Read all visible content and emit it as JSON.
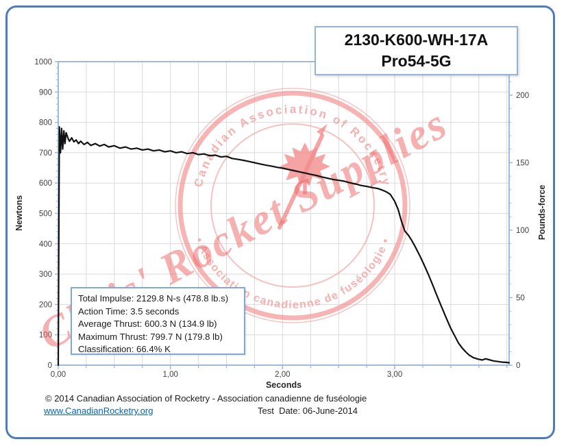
{
  "title_box": {
    "line1": "2130-K600-WH-17A",
    "line2": "Pro54-5G"
  },
  "stats_box": {
    "lines": [
      "Total Impulse: 2129.8 N-s (478.8 lb.s)",
      "Action Time: 3.5 seconds",
      "Average Thrust: 600.3 N (134.9 lb)",
      "Maximum Thrust: 799.7 N (179.8 lb)",
      "Classification: 66.4% K"
    ]
  },
  "watermark": {
    "arc_top": "Canadian Association of Rocketry",
    "arc_bottom": "• Association canadienne de fuséologie •",
    "diagonal": "Chris' Rocket Supplies",
    "icon": "maple-leaf-with-rocket",
    "color": "#F08080"
  },
  "footer": {
    "copyright": "© 2014 Canadian Association of Rocketry - Association canadienne de fuséologie",
    "link": "www.CanadianRocketry.org",
    "test_date": "Test  Date: 06-June-2014"
  },
  "chart_data": {
    "type": "line",
    "xlabel": "Seconds",
    "ylabel_left": "Newtons",
    "ylabel_right": "Pounds-force",
    "xlim": [
      0,
      4.02
    ],
    "ylim_left": [
      0,
      1000
    ],
    "x_tick_values": [
      0,
      1,
      2,
      3
    ],
    "x_tick_labels": [
      "0,00",
      "1,00",
      "2,00",
      "3,00"
    ],
    "x_grid_step": 0.25,
    "y_ticks_left": [
      0,
      100,
      200,
      300,
      400,
      500,
      600,
      700,
      800,
      900,
      1000
    ],
    "y_left_minor_step": 20,
    "y_ticks_right_lb": [
      0,
      50,
      100,
      150,
      200
    ],
    "y_right_minor_step_lb": 10,
    "lb_per_newton": 0.2248,
    "grid": true,
    "legend": "none",
    "colors": {
      "curve": "#111111",
      "grid": "#d9d9d9",
      "axis": "#95B3D7",
      "frame": "#4C7DBB",
      "link": "#0563C1",
      "watermark": "#F08080"
    },
    "series": [
      {
        "name": "Thrust (N) vs time (s)",
        "points": [
          [
            0.0,
            0
          ],
          [
            0.01,
            785
          ],
          [
            0.02,
            700
          ],
          [
            0.03,
            780
          ],
          [
            0.04,
            712
          ],
          [
            0.05,
            772
          ],
          [
            0.06,
            730
          ],
          [
            0.07,
            766
          ],
          [
            0.09,
            745
          ],
          [
            0.1,
            738
          ],
          [
            0.12,
            749
          ],
          [
            0.14,
            736
          ],
          [
            0.16,
            742
          ],
          [
            0.18,
            730
          ],
          [
            0.2,
            738
          ],
          [
            0.23,
            727
          ],
          [
            0.26,
            734
          ],
          [
            0.29,
            724
          ],
          [
            0.33,
            730
          ],
          [
            0.37,
            722
          ],
          [
            0.41,
            727
          ],
          [
            0.45,
            719
          ],
          [
            0.5,
            723
          ],
          [
            0.55,
            715
          ],
          [
            0.6,
            719
          ],
          [
            0.65,
            712
          ],
          [
            0.7,
            715
          ],
          [
            0.75,
            709
          ],
          [
            0.8,
            712
          ],
          [
            0.85,
            706
          ],
          [
            0.9,
            709
          ],
          [
            0.95,
            703
          ],
          [
            1.0,
            706
          ],
          [
            1.05,
            700
          ],
          [
            1.1,
            703
          ],
          [
            1.15,
            697
          ],
          [
            1.2,
            700
          ],
          [
            1.25,
            694
          ],
          [
            1.3,
            696
          ],
          [
            1.35,
            690
          ],
          [
            1.4,
            692
          ],
          [
            1.45,
            686
          ],
          [
            1.5,
            688
          ],
          [
            1.55,
            681
          ],
          [
            1.6,
            678
          ],
          [
            1.65,
            675
          ],
          [
            1.7,
            671
          ],
          [
            1.75,
            667
          ],
          [
            1.8,
            663
          ],
          [
            1.85,
            659
          ],
          [
            1.9,
            656
          ],
          [
            1.95,
            652
          ],
          [
            2.0,
            649
          ],
          [
            2.05,
            645
          ],
          [
            2.1,
            641
          ],
          [
            2.15,
            637
          ],
          [
            2.2,
            633
          ],
          [
            2.25,
            629
          ],
          [
            2.3,
            625
          ],
          [
            2.35,
            620
          ],
          [
            2.4,
            616
          ],
          [
            2.45,
            612
          ],
          [
            2.5,
            609
          ],
          [
            2.55,
            606
          ],
          [
            2.6,
            601
          ],
          [
            2.65,
            597
          ],
          [
            2.7,
            592
          ],
          [
            2.75,
            589
          ],
          [
            2.8,
            585
          ],
          [
            2.85,
            582
          ],
          [
            2.88,
            578
          ],
          [
            2.92,
            572
          ],
          [
            2.96,
            563
          ],
          [
            3.0,
            540
          ],
          [
            3.03,
            513
          ],
          [
            3.06,
            474
          ],
          [
            3.09,
            442
          ],
          [
            3.12,
            429
          ],
          [
            3.15,
            412
          ],
          [
            3.18,
            392
          ],
          [
            3.22,
            363
          ],
          [
            3.26,
            332
          ],
          [
            3.3,
            299
          ],
          [
            3.34,
            263
          ],
          [
            3.38,
            226
          ],
          [
            3.42,
            190
          ],
          [
            3.46,
            155
          ],
          [
            3.5,
            121
          ],
          [
            3.54,
            93
          ],
          [
            3.57,
            72
          ],
          [
            3.6,
            57
          ],
          [
            3.63,
            45
          ],
          [
            3.66,
            34
          ],
          [
            3.7,
            25
          ],
          [
            3.74,
            20
          ],
          [
            3.78,
            17
          ],
          [
            3.81,
            21
          ],
          [
            3.84,
            18
          ],
          [
            3.88,
            14
          ],
          [
            3.92,
            12
          ],
          [
            3.96,
            10
          ],
          [
            4.0,
            9
          ],
          [
            4.02,
            8
          ]
        ]
      }
    ]
  }
}
